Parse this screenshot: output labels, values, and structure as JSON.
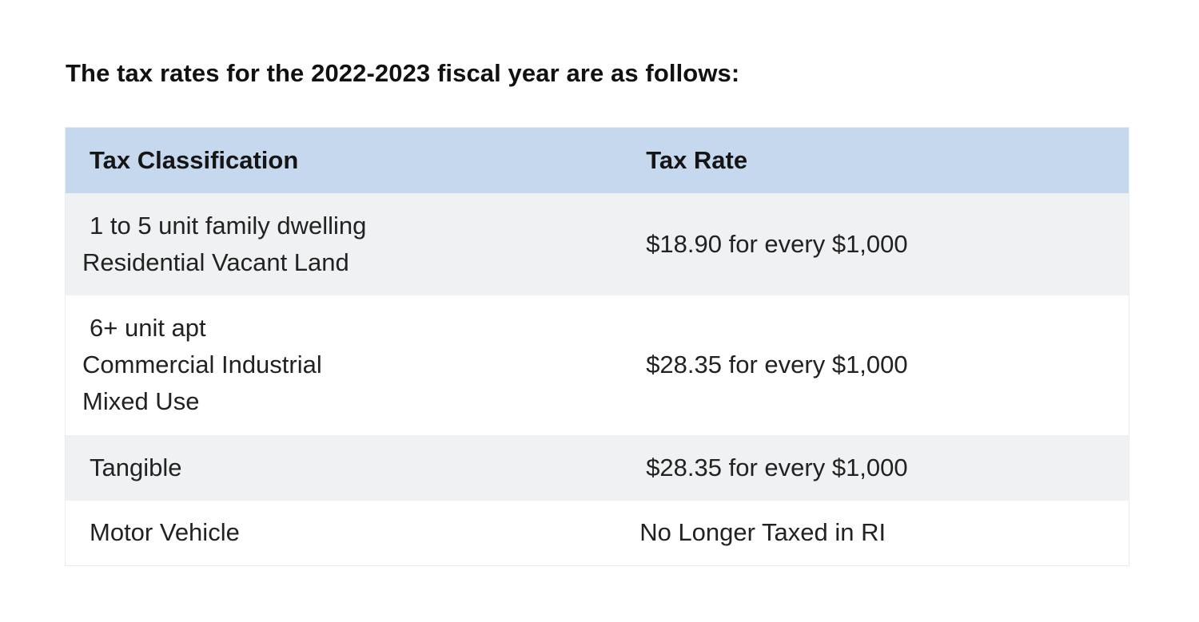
{
  "heading": "The tax rates for the 2022-2023 fiscal year are as follows:",
  "table": {
    "headers": [
      "Tax Classification",
      "Tax Rate"
    ],
    "rows": [
      {
        "classification": [
          "1 to 5 unit family dwelling",
          "Residential Vacant Land"
        ],
        "rate": "$18.90 for every $1,000"
      },
      {
        "classification": [
          "6+ unit apt",
          "Commercial Industrial",
          "Mixed Use"
        ],
        "rate": "$28.35 for every $1,000"
      },
      {
        "classification": [
          "Tangible"
        ],
        "rate": "$28.35 for every $1,000"
      },
      {
        "classification": [
          "Motor Vehicle"
        ],
        "rate": "No Longer Taxed in RI"
      }
    ]
  },
  "colors": {
    "header_bg": "#c6d8ee",
    "row_shaded_bg": "#f0f1f2",
    "row_plain_bg": "#ffffff"
  }
}
